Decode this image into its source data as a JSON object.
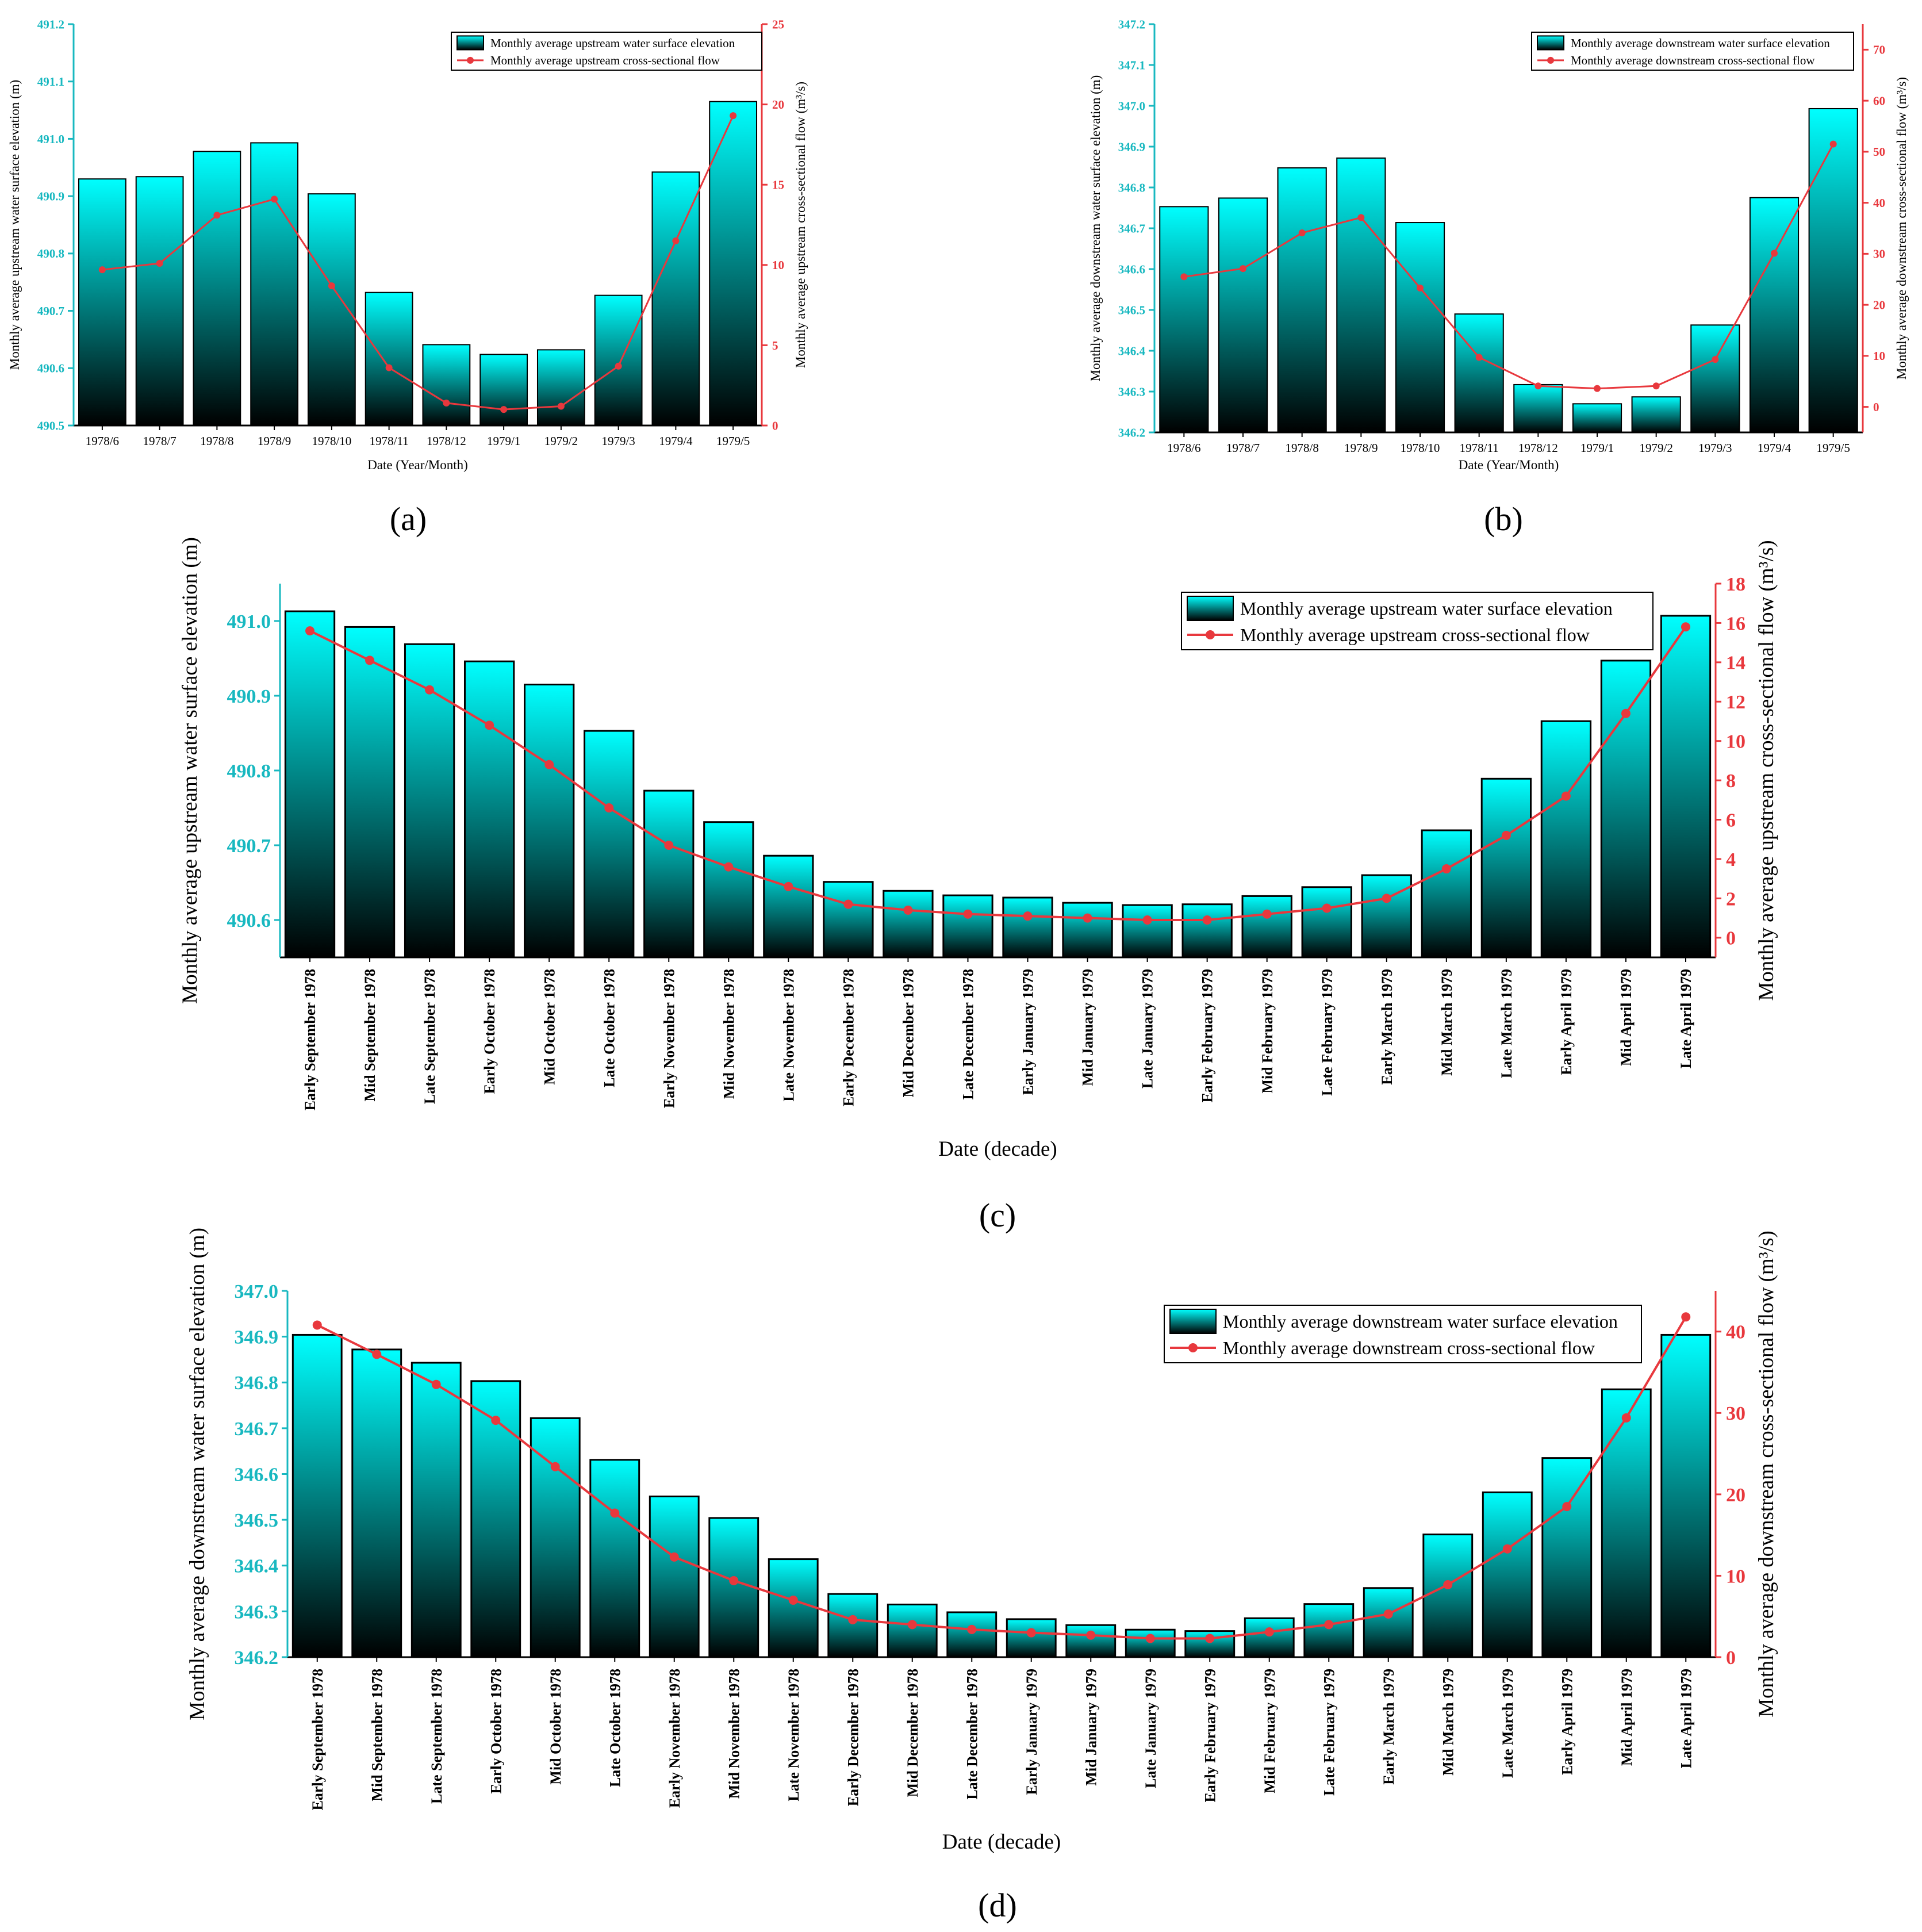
{
  "colors": {
    "bar_top": "#00ffff",
    "bar_bottom": "#000000",
    "line": "#e8383d",
    "left_axis": "#18b8c0",
    "right_axis": "#e8383d",
    "text": "#000000"
  },
  "chart_data": [
    {
      "id": "a",
      "panel_label": "(a)",
      "type": "bar",
      "xlabel": "Date (Year/Month)",
      "ylabel_left": "Monthly average upstream water surface elevation (m)",
      "ylabel_right": "Monthly average upstream cross-sectional flow (m³/s)",
      "legend_bar": "Monthly average upstream water surface elevation",
      "legend_line": "Monthly average upstream cross-sectional flow",
      "legend_position": "top-right",
      "categories": [
        "1978/6",
        "1978/7",
        "1978/8",
        "1978/9",
        "1978/10",
        "1978/11",
        "1978/12",
        "1979/1",
        "1979/2",
        "1979/3",
        "1979/4",
        "1979/5"
      ],
      "bar_values": [
        490.93,
        490.934,
        490.978,
        490.993,
        490.904,
        490.732,
        490.641,
        490.624,
        490.632,
        490.727,
        490.942,
        491.065
      ],
      "line_values": [
        9.7,
        10.1,
        13.1,
        14.1,
        8.7,
        3.6,
        1.4,
        1.0,
        1.2,
        3.7,
        11.5,
        19.3
      ],
      "ylim_left": [
        490.5,
        491.2
      ],
      "yticks_left": [
        490.5,
        490.6,
        490.7,
        490.8,
        490.9,
        491.0,
        491.1,
        491.2
      ],
      "yticklabels_left": [
        "490.5",
        "490.6",
        "490.7",
        "490.8",
        "490.9",
        "491.0",
        "491.1",
        "491.2"
      ],
      "ylim_right": [
        0,
        25
      ],
      "yticks_right": [
        0,
        5,
        10,
        15,
        20,
        25
      ],
      "yticklabels_right": [
        "0",
        "5",
        "10",
        "15",
        "20",
        "25"
      ]
    },
    {
      "id": "b",
      "panel_label": "(b)",
      "type": "bar",
      "xlabel": "Date (Year/Month)",
      "ylabel_left": "Monthly average downstream water surface elevation (m)",
      "ylabel_right": "Monthly average downstream cross-sectional flow (m³/s)",
      "legend_bar": "Monthly average downstream water surface elevation",
      "legend_line": "Monthly average downstream cross-sectional flow",
      "legend_position": "top-right",
      "categories": [
        "1978/6",
        "1978/7",
        "1978/8",
        "1978/9",
        "1978/10",
        "1978/11",
        "1978/12",
        "1979/1",
        "1979/2",
        "1979/3",
        "1979/4",
        "1979/5"
      ],
      "bar_values": [
        346.753,
        346.774,
        346.848,
        346.872,
        346.714,
        346.49,
        346.317,
        346.27,
        346.287,
        346.463,
        346.775,
        346.993
      ],
      "line_values": [
        25.5,
        27.1,
        34.1,
        37.1,
        23.3,
        9.7,
        4.1,
        3.6,
        4.1,
        9.3,
        30.1,
        51.5
      ],
      "ylim_left": [
        346.2,
        347.2
      ],
      "yticks_left": [
        346.2,
        346.3,
        346.4,
        346.5,
        346.6,
        346.7,
        346.8,
        346.9,
        347.0,
        347.1,
        347.2
      ],
      "yticklabels_left": [
        "346.2",
        "346.3",
        "346.4",
        "346.5",
        "346.6",
        "346.7",
        "346.8",
        "346.9",
        "347.0",
        "347.1",
        "347.2"
      ],
      "ylim_right": [
        -5,
        75
      ],
      "yticks_right": [
        0,
        10,
        20,
        30,
        40,
        50,
        60,
        70
      ],
      "yticklabels_right": [
        "0",
        "10",
        "20",
        "30",
        "40",
        "50",
        "60",
        "70"
      ]
    },
    {
      "id": "c",
      "panel_label": "(c)",
      "type": "bar",
      "xlabel": "Date (decade)",
      "ylabel_left": "Monthly average upstream water surface elevation (m)",
      "ylabel_right": "Monthly average upstream cross-sectional flow (m³/s)",
      "legend_bar": "Monthly average upstream water surface elevation",
      "legend_line": "Monthly average upstream cross-sectional flow",
      "legend_position": "top-right",
      "categories": [
        "Early September 1978",
        "Mid September 1978",
        "Late September 1978",
        "Early October 1978",
        "Mid October 1978",
        "Late October 1978",
        "Early November 1978",
        "Mid November 1978",
        "Late November 1978",
        "Early December 1978",
        "Mid December 1978",
        "Late December 1978",
        "Early January 1979",
        "Mid January 1979",
        "Late January 1979",
        "Early February 1979",
        "Mid February 1979",
        "Late February 1979",
        "Early March 1979",
        "Mid March 1979",
        "Late March 1979",
        "Early April 1979",
        "Mid April 1979",
        "Late April 1979"
      ],
      "bar_values": [
        491.013,
        490.992,
        490.969,
        490.946,
        490.915,
        490.853,
        490.773,
        490.731,
        490.686,
        490.651,
        490.639,
        490.633,
        490.63,
        490.623,
        490.62,
        490.621,
        490.632,
        490.644,
        490.66,
        490.72,
        490.789,
        490.866,
        490.947,
        491.007
      ],
      "line_values": [
        15.6,
        14.1,
        12.6,
        10.8,
        8.8,
        6.6,
        4.7,
        3.6,
        2.6,
        1.7,
        1.4,
        1.2,
        1.1,
        1.0,
        0.9,
        0.9,
        1.2,
        1.5,
        2.0,
        3.5,
        5.2,
        7.2,
        11.4,
        15.8
      ],
      "ylim_left": [
        490.55,
        491.05
      ],
      "yticks_left": [
        490.6,
        490.7,
        490.8,
        490.9,
        491.0
      ],
      "yticklabels_left": [
        "490.6",
        "490.7",
        "490.8",
        "490.9",
        "491.0"
      ],
      "ylim_right": [
        -1,
        18
      ],
      "yticks_right": [
        0,
        2,
        4,
        6,
        8,
        10,
        12,
        14,
        16,
        18
      ],
      "yticklabels_right": [
        "0",
        "2",
        "4",
        "6",
        "8",
        "10",
        "12",
        "14",
        "16",
        "18"
      ]
    },
    {
      "id": "d",
      "panel_label": "(d)",
      "type": "bar",
      "xlabel": "Date (decade)",
      "ylabel_left": "Monthly average downstream water surface elevation (m)",
      "ylabel_right": "Monthly average downstream cross-sectional flow (m³/s)",
      "legend_bar": "Monthly average downstream water surface elevation",
      "legend_line": "Monthly average downstream cross-sectional flow",
      "legend_position": "top-right",
      "categories": [
        "Early September 1978",
        "Mid September 1978",
        "Late September 1978",
        "Early October 1978",
        "Mid October 1978",
        "Late October 1978",
        "Early November 1978",
        "Mid November 1978",
        "Late November 1978",
        "Early December 1978",
        "Mid December 1978",
        "Late December 1978",
        "Early January 1979",
        "Mid January 1979",
        "Late January 1979",
        "Early February 1979",
        "Mid February 1979",
        "Late February 1979",
        "Early March 1979",
        "Mid March 1979",
        "Late March 1979",
        "Early April 1979",
        "Mid April 1979",
        "Late April 1979"
      ],
      "bar_values": [
        346.904,
        346.872,
        346.843,
        346.803,
        346.722,
        346.631,
        346.551,
        346.504,
        346.414,
        346.338,
        346.315,
        346.298,
        346.283,
        346.27,
        346.26,
        346.257,
        346.285,
        346.316,
        346.351,
        346.468,
        346.56,
        346.635,
        346.785,
        346.904
      ],
      "line_values": [
        40.8,
        37.2,
        33.5,
        29.1,
        23.4,
        17.7,
        12.3,
        9.4,
        7.0,
        4.6,
        4.0,
        3.4,
        3.0,
        2.7,
        2.3,
        2.3,
        3.1,
        4.0,
        5.3,
        8.9,
        13.3,
        18.5,
        29.4,
        41.8
      ],
      "ylim_left": [
        346.2,
        347.0
      ],
      "yticks_left": [
        346.2,
        346.3,
        346.4,
        346.5,
        346.6,
        346.7,
        346.8,
        346.9,
        347.0
      ],
      "yticklabels_left": [
        "346.2",
        "346.3",
        "346.4",
        "346.5",
        "346.6",
        "346.7",
        "346.8",
        "346.9",
        "347.0"
      ],
      "ylim_right": [
        0,
        45
      ],
      "yticks_right": [
        0,
        10,
        20,
        30,
        40
      ],
      "yticklabels_right": [
        "0",
        "10",
        "20",
        "30",
        "40"
      ]
    }
  ]
}
